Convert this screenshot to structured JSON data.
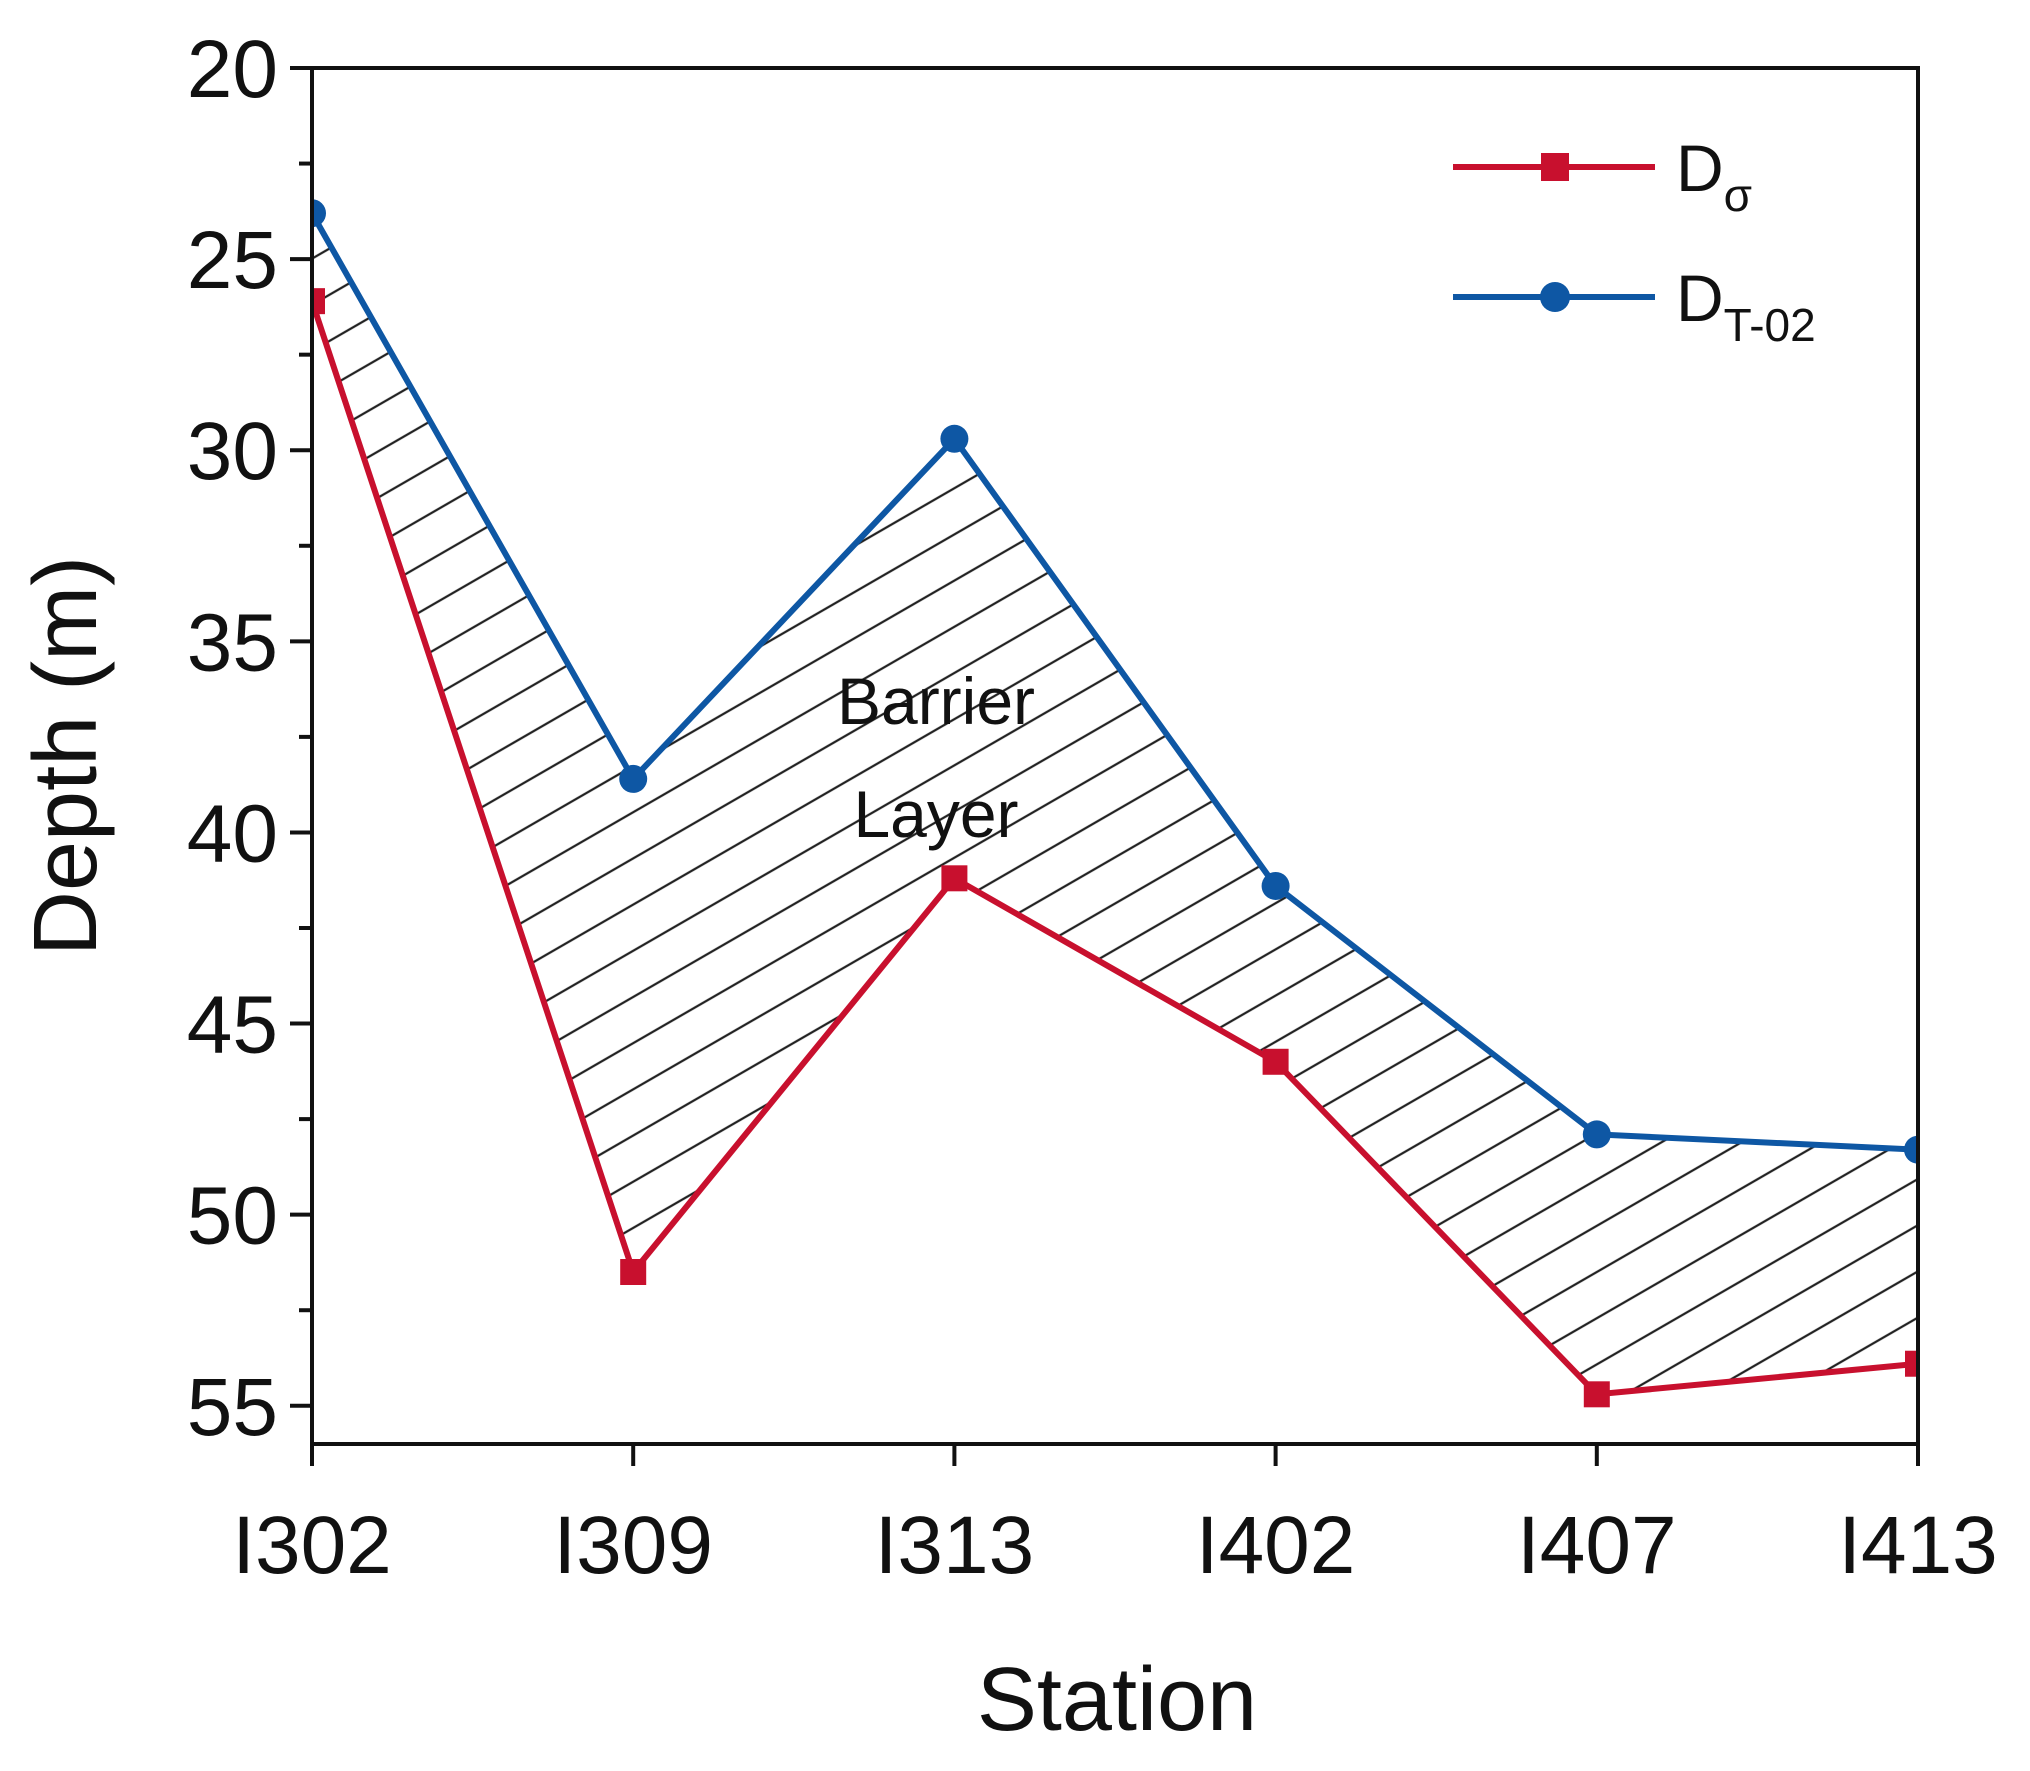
{
  "chart_data": {
    "type": "line",
    "title": "",
    "xlabel": "Station",
    "ylabel": "Depth (m)",
    "categories": [
      "I302",
      "I309",
      "I313",
      "I402",
      "I407",
      "I413"
    ],
    "ylim": [
      20,
      56
    ],
    "y_inverted": true,
    "yticks": [
      20,
      25,
      30,
      35,
      40,
      45,
      50,
      55
    ],
    "series": [
      {
        "name": "D",
        "subscript": "σ",
        "color": "#c8102e",
        "marker": "square",
        "values": [
          26.1,
          51.5,
          41.2,
          46.0,
          54.7,
          53.9
        ]
      },
      {
        "name": "D",
        "subscript": "T-02",
        "color": "#0e57a4",
        "marker": "circle",
        "values": [
          23.8,
          38.6,
          29.7,
          41.4,
          47.9,
          48.3
        ]
      }
    ],
    "annotation": {
      "line1": "Barrier",
      "line2": "Layer"
    },
    "legend_position": "top-right",
    "hatched_region": "between series"
  }
}
